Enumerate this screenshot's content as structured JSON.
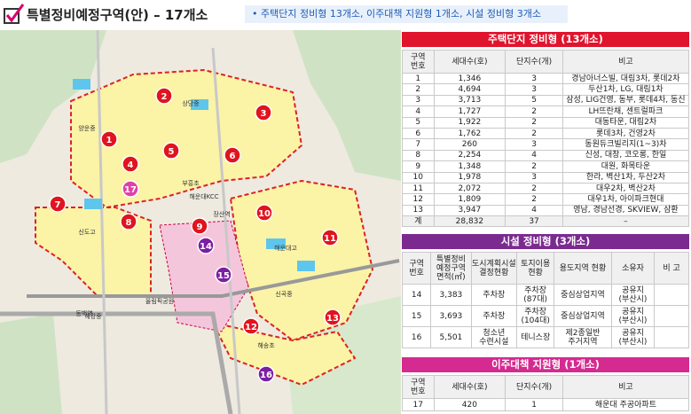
{
  "header": {
    "title": "특별정비예정구역(안) – 17개소",
    "summary": "• 주택단지 정비형 13개소, 이주대책 지원형 1개소, 시설 정비형 3개소"
  },
  "map": {
    "markers": [
      "1",
      "2",
      "3",
      "4",
      "5",
      "6",
      "7",
      "8",
      "9",
      "10",
      "11",
      "12",
      "13",
      "14",
      "15",
      "16",
      "17"
    ],
    "labels": [
      "장산역",
      "양운중",
      "상당중",
      "부흥초",
      "해운대KCC",
      "신도고",
      "해강중",
      "신곡중",
      "해송초",
      "동백역",
      "올림픽공원",
      "해운대고"
    ]
  },
  "tables": [
    {
      "title": "주택단지 정비형 (13개소)",
      "headers": [
        "구역\n번호",
        "세대수(호)",
        "단지수(개)",
        "비고"
      ],
      "rows": [
        [
          "1",
          "1,346",
          "3",
          "경남아너스빌, 대림3차, 롯데2차"
        ],
        [
          "2",
          "4,694",
          "3",
          "두산1차, LG, 대림1차"
        ],
        [
          "3",
          "3,713",
          "5",
          "삼성, LIG건영, 동부, 롯데4차, 동신"
        ],
        [
          "4",
          "1,727",
          "2",
          "LH뜨란채, 센트럴파크"
        ],
        [
          "5",
          "1,922",
          "2",
          "대동타운, 대림2차"
        ],
        [
          "6",
          "1,762",
          "2",
          "롯데3차, 건영2차"
        ],
        [
          "7",
          "260",
          "3",
          "동원듀크빌리지(1~3)차"
        ],
        [
          "8",
          "2,254",
          "4",
          "신성, 대창, 코오롱, 한일"
        ],
        [
          "9",
          "1,348",
          "2",
          "대원, 화목타운"
        ],
        [
          "10",
          "1,978",
          "3",
          "한라, 벽산1차, 두산2차"
        ],
        [
          "11",
          "2,072",
          "2",
          "대우2차, 벽산2차"
        ],
        [
          "12",
          "1,809",
          "2",
          "대우1차, 아이파크현대"
        ],
        [
          "13",
          "3,947",
          "4",
          "영남, 경남선경, SKVIEW, 삼환"
        ],
        [
          "계",
          "28,832",
          "37",
          "–"
        ]
      ]
    },
    {
      "title": "시설 정비형 (3개소)",
      "headers": [
        "구역\n번호",
        "특별정비\n예정구역\n면적(㎡)",
        "도시계획시설\n결정현황",
        "토지이용\n현황",
        "용도지역 현황",
        "소유자",
        "비 고"
      ],
      "rows": [
        [
          "14",
          "3,383",
          "주차장",
          "주차장\n(87대)",
          "중심상업지역",
          "공유지\n(부산시)"
        ],
        [
          "15",
          "3,693",
          "주차장",
          "주차장\n(104대)",
          "중심상업지역",
          "공유지\n(부산시)"
        ],
        [
          "16",
          "5,501",
          "청소년\n수련시설",
          "테니스장",
          "제2종일반\n주거지역",
          "공유지\n(부산시)"
        ]
      ]
    },
    {
      "title": "이주대책 지원형 (1개소)",
      "headers": [
        "구역\n번호",
        "세대수(호)",
        "단지수(개)",
        "비고"
      ],
      "rows": [
        [
          "17",
          "420",
          "1",
          "해운대 주공아파트"
        ]
      ]
    }
  ]
}
